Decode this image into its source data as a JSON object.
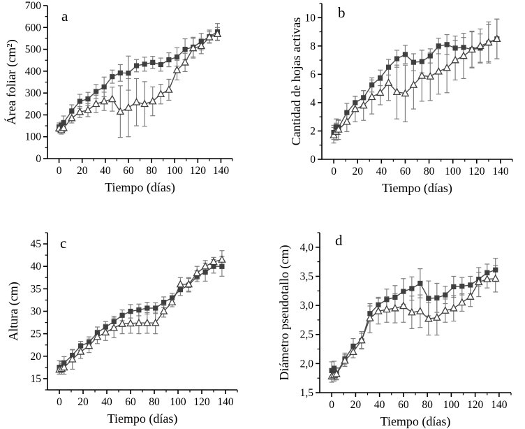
{
  "figure": {
    "title": "",
    "colors": {
      "marker_dark": "#3f3f3f",
      "line": "#4a4a4a",
      "error_bar": "#7f7f7f",
      "axis": "#000000",
      "triangle_fill": "#ffffff",
      "background": "#ffffff"
    }
  },
  "chart_data": [
    {
      "id": "a",
      "type": "line",
      "panel_label": "a",
      "xlabel": "Tiempo (días)",
      "ylabel": "Área foliar (cm²)",
      "xlim": [
        -10,
        150
      ],
      "ylim": [
        0,
        700
      ],
      "xticks": [
        0,
        20,
        40,
        60,
        80,
        100,
        120,
        140
      ],
      "xtick_labels": [
        "0",
        "20",
        "40",
        "60",
        "80",
        "100",
        "120",
        "140"
      ],
      "x_minor_step": 10,
      "yticks": [
        0,
        100,
        200,
        300,
        400,
        500,
        600,
        700
      ],
      "ytick_labels": [
        "0",
        "100",
        "200",
        "300",
        "400",
        "500",
        "600",
        "700"
      ],
      "y_minor_step": 50,
      "x": [
        0,
        2,
        4,
        11,
        18,
        25,
        32,
        39,
        46,
        53,
        60,
        67,
        74,
        81,
        88,
        95,
        102,
        109,
        116,
        123,
        130,
        137
      ],
      "series": [
        {
          "name": "serie-cuadrados-rellenos",
          "marker": "square",
          "values": [
            145,
            152,
            165,
            218,
            262,
            273,
            307,
            328,
            375,
            392,
            391,
            425,
            432,
            440,
            430,
            452,
            465,
            500,
            510,
            535,
            558,
            580
          ],
          "errors": [
            18,
            15,
            30,
            28,
            32,
            30,
            32,
            45,
            30,
            38,
            78,
            28,
            32,
            28,
            30,
            32,
            42,
            48,
            45,
            38,
            30,
            38
          ]
        },
        {
          "name": "serie-triangulos-abiertos",
          "marker": "triangle-open",
          "values": [
            138,
            130,
            140,
            185,
            213,
            222,
            250,
            262,
            272,
            215,
            233,
            258,
            250,
            262,
            295,
            315,
            405,
            440,
            505,
            515,
            555,
            570
          ],
          "errors": [
            15,
            18,
            15,
            22,
            25,
            30,
            40,
            42,
            55,
            118,
            133,
            108,
            102,
            66,
            45,
            48,
            45,
            42,
            45,
            35,
            25,
            30
          ]
        }
      ]
    },
    {
      "id": "b",
      "type": "line",
      "panel_label": "b",
      "xlabel": "Tiempo (días)",
      "ylabel": "Cantidad de hojas activas",
      "xlim": [
        -10,
        150
      ],
      "ylim": [
        0,
        11
      ],
      "xticks": [
        0,
        20,
        40,
        60,
        80,
        100,
        120,
        140
      ],
      "xtick_labels": [
        "0",
        "20",
        "40",
        "60",
        "80",
        "100",
        "120",
        "140"
      ],
      "x_minor_step": 10,
      "yticks": [
        0,
        2,
        4,
        6,
        8,
        10
      ],
      "ytick_labels": [
        "0",
        "2",
        "4",
        "6",
        "8",
        "10"
      ],
      "y_minor_step": 1,
      "x": [
        0,
        2,
        4,
        11,
        18,
        25,
        32,
        39,
        46,
        53,
        60,
        67,
        74,
        81,
        88,
        95,
        102,
        109,
        116,
        123,
        130,
        137
      ],
      "series": [
        {
          "name": "serie-cuadrados-rellenos",
          "marker": "square",
          "values": [
            1.9,
            2.3,
            2.25,
            3.3,
            4.0,
            4.35,
            5.25,
            5.75,
            6.5,
            7.1,
            7.4,
            6.85,
            6.9,
            7.3,
            8.0,
            8.1,
            7.85,
            7.9,
            7.75,
            7.85,
            8.2,
            8.5
          ],
          "errors": [
            0.5,
            0.55,
            0.5,
            0.65,
            0.45,
            0.5,
            0.5,
            0.55,
            0.55,
            0.6,
            0.65,
            0.6,
            0.8,
            0.5,
            0.55,
            0.7,
            0.85,
            0.7,
            1.25,
            1.0,
            1.3,
            1.4
          ]
        },
        {
          "name": "serie-triangulos-abiertos",
          "marker": "triangle-open",
          "values": [
            1.7,
            1.95,
            2.1,
            2.65,
            3.55,
            3.8,
            4.4,
            4.7,
            5.4,
            4.75,
            4.65,
            5.25,
            5.9,
            5.85,
            6.2,
            6.45,
            7.0,
            7.3,
            7.75,
            8.0,
            8.25,
            8.5
          ],
          "errors": [
            0.55,
            0.6,
            0.7,
            0.7,
            0.9,
            1.05,
            1.2,
            0.85,
            1.25,
            1.9,
            2.0,
            1.7,
            1.8,
            1.7,
            1.6,
            1.75,
            1.4,
            1.6,
            1.3,
            1.2,
            1.45,
            1.4
          ]
        }
      ]
    },
    {
      "id": "c",
      "type": "line",
      "panel_label": "c",
      "xlabel": "Tiempo (días)",
      "ylabel": "Altura (cm)",
      "xlim": [
        -10,
        150
      ],
      "ylim": [
        12.5,
        47.5
      ],
      "xticks": [
        0,
        20,
        40,
        60,
        80,
        100,
        120,
        140
      ],
      "xtick_labels": [
        "0",
        "20",
        "40",
        "60",
        "80",
        "100",
        "120",
        "140"
      ],
      "x_minor_step": 10,
      "yticks": [
        15,
        20,
        25,
        30,
        35,
        40,
        45
      ],
      "ytick_labels": [
        "15",
        "20",
        "25",
        "30",
        "35",
        "40",
        "45"
      ],
      "y_minor_step": 2.5,
      "x": [
        0,
        2,
        4,
        11,
        18,
        25,
        32,
        39,
        46,
        53,
        60,
        67,
        74,
        81,
        88,
        95,
        102,
        109,
        116,
        123,
        130,
        137
      ],
      "series": [
        {
          "name": "serie-cuadrados-rellenos",
          "marker": "square",
          "values": [
            17.5,
            17.6,
            18.5,
            20.2,
            22.3,
            23.1,
            25.2,
            26.5,
            27.7,
            29.1,
            30.0,
            30.3,
            30.7,
            30.7,
            32.0,
            33.0,
            34.8,
            35.8,
            37.8,
            38.7,
            40.0,
            40.0
          ],
          "errors": [
            1.5,
            1.2,
            1.4,
            1.2,
            1.0,
            1.2,
            1.3,
            1.2,
            1.2,
            1.2,
            1.5,
            1.3,
            1.3,
            1.2,
            1.2,
            1.0,
            1.3,
            1.5,
            1.2,
            2.0,
            1.5,
            2.2
          ]
        },
        {
          "name": "serie-triangulos-abiertos",
          "marker": "triangle-open",
          "values": [
            17.0,
            17.2,
            17.5,
            19.3,
            21.0,
            22.3,
            24.3,
            25.3,
            26.3,
            27.2,
            27.3,
            27.4,
            27.4,
            27.4,
            30.0,
            32.0,
            36.0,
            36.0,
            38.5,
            40.0,
            41.0,
            41.5
          ],
          "errors": [
            1.0,
            1.2,
            1.5,
            2.2,
            1.5,
            1.5,
            1.5,
            1.8,
            2.2,
            2.2,
            2.2,
            2.4,
            2.3,
            2.4,
            1.3,
            1.0,
            1.5,
            1.5,
            1.5,
            1.3,
            1.0,
            2.0
          ]
        }
      ]
    },
    {
      "id": "d",
      "type": "line",
      "panel_label": "d",
      "xlabel": "Tiempo (días)",
      "ylabel": "Diámetro pseudotallo (cm)",
      "xlim": [
        -10,
        150
      ],
      "ylim": [
        1.5,
        4.25
      ],
      "xticks": [
        0,
        20,
        40,
        60,
        80,
        100,
        120,
        140
      ],
      "xtick_labels": [
        "0",
        "20",
        "40",
        "60",
        "80",
        "100",
        "120",
        "140"
      ],
      "x_minor_step": 10,
      "yticks": [
        1.5,
        2.0,
        2.5,
        3.0,
        3.5,
        4.0
      ],
      "ytick_labels": [
        "1,5",
        "2,0",
        "2,5",
        "3,0",
        "3,5",
        "4,0"
      ],
      "y_minor_step": 0.25,
      "x": [
        0,
        2,
        4,
        11,
        18,
        25,
        32,
        39,
        46,
        53,
        60,
        67,
        74,
        81,
        88,
        95,
        102,
        109,
        116,
        123,
        130,
        137
      ],
      "series": [
        {
          "name": "serie-cuadrados-rellenos",
          "marker": "square",
          "values": [
            1.88,
            1.92,
            1.83,
            2.08,
            2.3,
            2.39,
            2.86,
            3.01,
            3.1,
            3.14,
            3.24,
            3.29,
            3.38,
            3.12,
            3.13,
            3.18,
            3.32,
            3.33,
            3.35,
            3.45,
            3.56,
            3.61
          ],
          "errors": [
            0.15,
            0.12,
            0.1,
            0.1,
            0.13,
            0.13,
            0.13,
            0.13,
            0.18,
            0.2,
            0.22,
            0.2,
            0.25,
            0.3,
            0.25,
            0.15,
            0.18,
            0.15,
            0.15,
            0.12,
            0.15,
            0.2
          ]
        },
        {
          "name": "serie-triangulos-abiertos",
          "marker": "triangle-open",
          "values": [
            1.78,
            1.8,
            1.82,
            2.05,
            2.2,
            2.4,
            2.78,
            2.9,
            2.93,
            2.95,
            2.99,
            2.88,
            2.9,
            2.77,
            2.79,
            2.91,
            2.95,
            3.05,
            3.15,
            3.4,
            3.45,
            3.46
          ],
          "errors": [
            0.1,
            0.1,
            0.1,
            0.1,
            0.1,
            0.15,
            0.25,
            0.22,
            0.22,
            0.25,
            0.28,
            0.28,
            0.28,
            0.28,
            0.3,
            0.2,
            0.22,
            0.15,
            0.17,
            0.25,
            0.15,
            0.23
          ]
        }
      ]
    }
  ]
}
